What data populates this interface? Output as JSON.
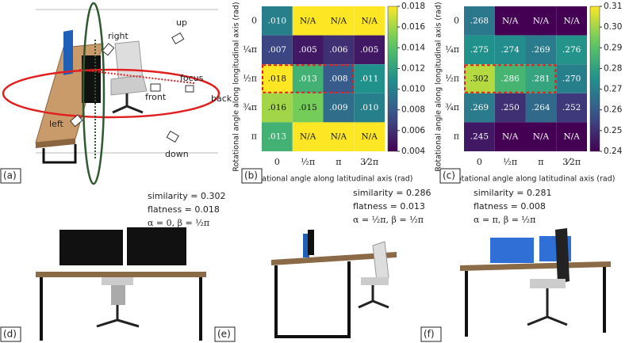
{
  "panel_a": {
    "label": "(a)",
    "cameras": [
      "up",
      "right",
      "focus",
      "front",
      "back",
      "left",
      "down"
    ]
  },
  "chart_data": [
    {
      "type": "heatmap",
      "panel_label": "(b)",
      "x_label": "Rotational angle along latitudinal axis (rad)",
      "y_label": "Rotational angle along longitudinal axis (rad)",
      "categories": [
        "0",
        "½π",
        "π",
        "3⁄2π"
      ],
      "y_categories": [
        "0",
        "¼π",
        "½π",
        "¾π",
        "π"
      ],
      "values": [
        [
          0.01,
          null,
          null,
          null
        ],
        [
          0.007,
          0.005,
          0.006,
          0.005
        ],
        [
          0.018,
          0.013,
          0.008,
          0.011
        ],
        [
          0.016,
          0.015,
          0.009,
          0.01
        ],
        [
          0.013,
          null,
          null,
          null
        ]
      ],
      "value_labels": [
        [
          ".010",
          "N/A",
          "N/A",
          "N/A"
        ],
        [
          ".007",
          ".005",
          ".006",
          ".005"
        ],
        [
          ".018",
          ".013",
          ".008",
          ".011"
        ],
        [
          ".016",
          ".015",
          ".009",
          ".010"
        ],
        [
          ".013",
          "N/A",
          "N/A",
          "N/A"
        ]
      ],
      "zlim": [
        0.004,
        0.018
      ],
      "zticks": [
        0.004,
        0.006,
        0.008,
        {
          "value": 0.01,
          "label": "0.010"
        },
        0.012,
        0.014,
        0.016,
        0.018
      ],
      "colormap": "viridis",
      "na_color": "#fde725"
    },
    {
      "type": "heatmap",
      "panel_label": "(c)",
      "x_label": "Rotational angle along latitudinal axis (rad)",
      "y_label": "Rotational angle along longitudinal axis (rad)",
      "categories": [
        "0",
        "½π",
        "π",
        "3⁄2π"
      ],
      "y_categories": [
        "0",
        "¼π",
        "½π",
        "¾π",
        "π"
      ],
      "values": [
        [
          0.268,
          null,
          null,
          null
        ],
        [
          0.275,
          0.274,
          0.269,
          0.276
        ],
        [
          0.302,
          0.286,
          0.281,
          0.27
        ],
        [
          0.269,
          0.25,
          0.264,
          0.252
        ],
        [
          0.245,
          null,
          null,
          null
        ]
      ],
      "value_labels": [
        [
          ".268",
          "N/A",
          "N/A",
          "N/A"
        ],
        [
          ".275",
          ".274",
          ".269",
          ".276"
        ],
        [
          ".302",
          ".286",
          ".281",
          ".270"
        ],
        [
          ".269",
          ".250",
          ".264",
          ".252"
        ],
        [
          ".245",
          "N/A",
          "N/A",
          "N/A"
        ]
      ],
      "zlim": [
        0.24,
        0.31
      ],
      "zticks": [
        0.24,
        0.25,
        0.26,
        0.27,
        0.28,
        0.29,
        {
          "value": 0.3,
          "label": "0.30"
        },
        0.31
      ],
      "colormap": "viridis",
      "na_color": "#440154"
    }
  ],
  "renders": [
    {
      "label": "(d)",
      "lines": [
        "similarity = 0.302",
        "flatness = 0.018",
        "α = 0, β = ½π"
      ]
    },
    {
      "label": "(e)",
      "lines": [
        "similarity = 0.286",
        "flatness = 0.013",
        "α = ½π, β = ½π"
      ]
    },
    {
      "label": "(f)",
      "lines": [
        "similarity = 0.281",
        "flatness = 0.008",
        "α = π, β = ½π"
      ]
    }
  ]
}
